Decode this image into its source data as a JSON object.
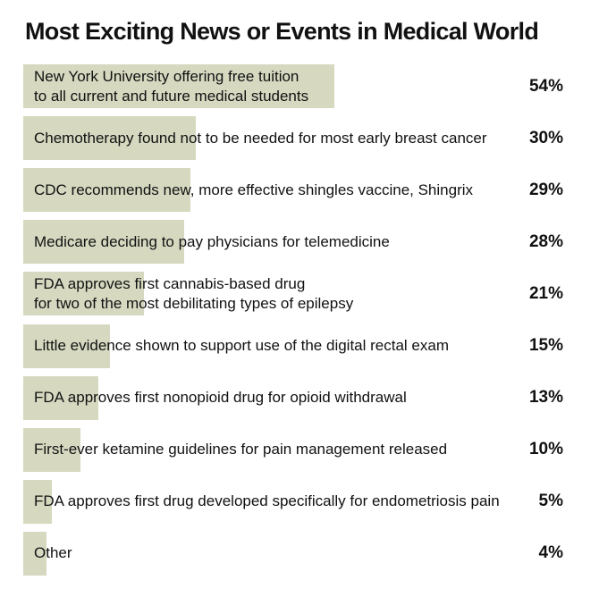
{
  "chart_data": {
    "type": "bar",
    "orientation": "horizontal",
    "title": "Most Exciting News or Events in Medical World",
    "categories": [
      [
        "New York University offering free tuition",
        "to all current and future medical students"
      ],
      [
        "Chemotherapy found not to be needed for most early breast cancer"
      ],
      [
        "CDC recommends new, more effective shingles vaccine, Shingrix"
      ],
      [
        "Medicare deciding to pay physicians for telemedicine"
      ],
      [
        "FDA approves first cannabis-based drug",
        "for two of the most debilitating types of epilepsy"
      ],
      [
        "Little evidence shown to support use of the digital rectal exam"
      ],
      [
        "FDA approves first nonopioid drug for opioid withdrawal"
      ],
      [
        "First-ever ketamine guidelines for pain management released"
      ],
      [
        "FDA approves first drug developed specifically for endometriosis pain"
      ],
      [
        "Other"
      ]
    ],
    "values": [
      54,
      30,
      29,
      28,
      21,
      15,
      13,
      10,
      5,
      4
    ],
    "value_labels": [
      "54%",
      "30%",
      "29%",
      "28%",
      "21%",
      "15%",
      "13%",
      "10%",
      "5%",
      "4%"
    ],
    "bar_color": "#d6d9c0",
    "xlim": [
      0,
      100
    ],
    "grid": false,
    "legend": "none"
  }
}
